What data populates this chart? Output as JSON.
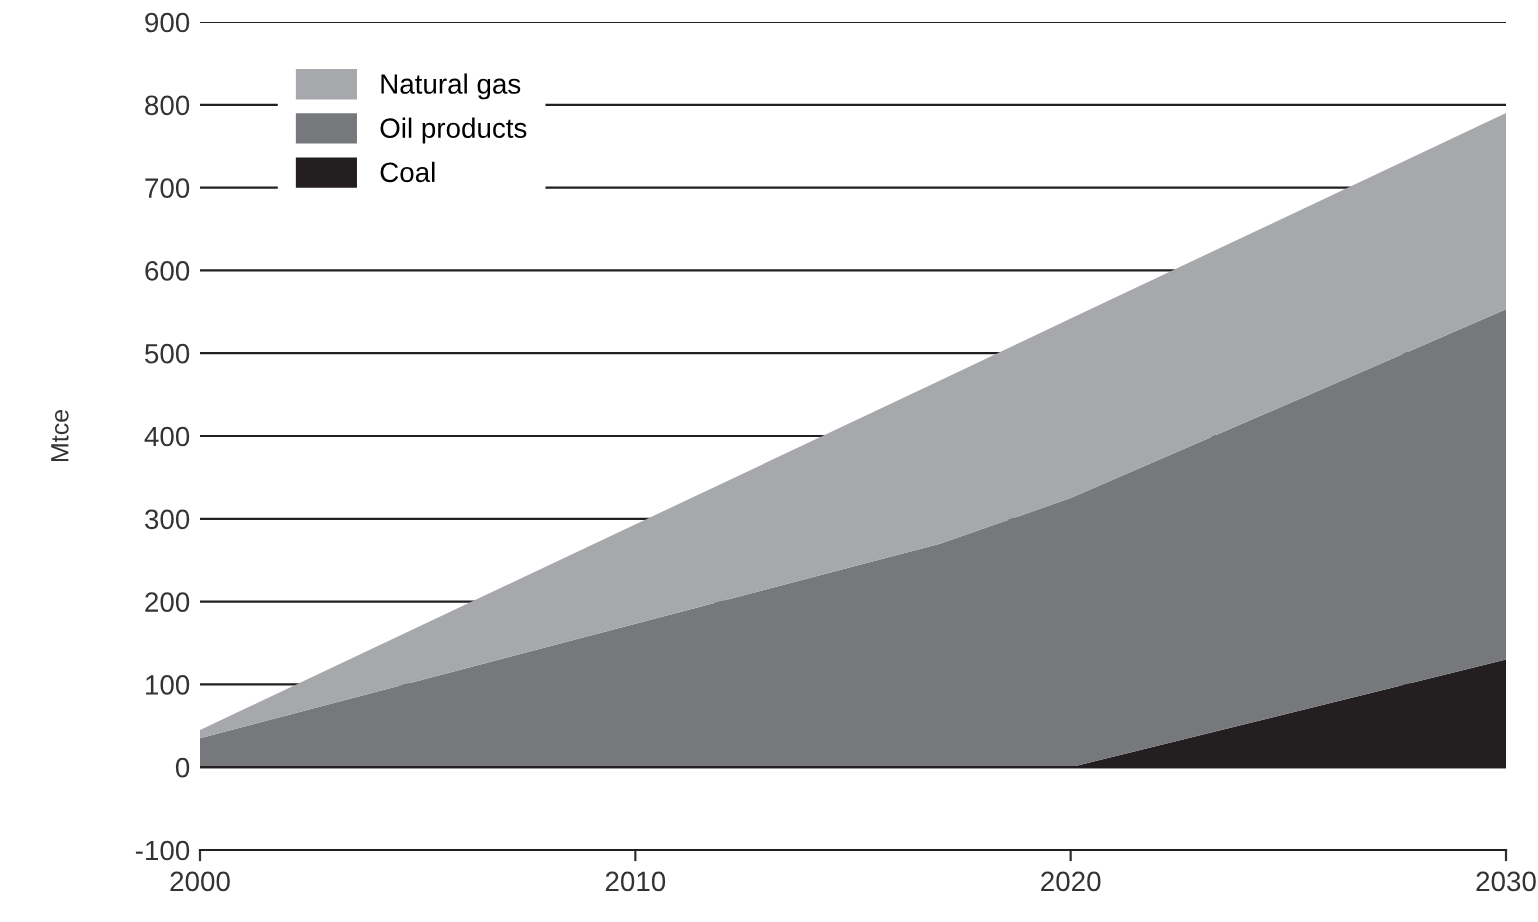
{
  "chart_data": {
    "type": "area",
    "stacked": true,
    "ylabel": "Mtce",
    "x": [
      2000,
      2017,
      2020,
      2030
    ],
    "series": [
      {
        "name": "Coal",
        "color": "#231f20",
        "values": [
          0,
          0,
          0,
          130
        ]
      },
      {
        "name": "Oil products",
        "color": "#77787b",
        "values": [
          35,
          270,
          325,
          423
        ]
      },
      {
        "name": "Natural gas",
        "color": "#a7a8ab",
        "values": [
          10,
          197,
          217,
          237
        ]
      }
    ],
    "xlim": [
      2000,
      2030
    ],
    "xticks": [
      2000,
      2010,
      2020,
      2030
    ],
    "ylim": [
      -100,
      900
    ],
    "yticks": [
      -100,
      0,
      100,
      200,
      300,
      400,
      500,
      600,
      700,
      800,
      900
    ],
    "grid": "y",
    "legend": "top left"
  }
}
